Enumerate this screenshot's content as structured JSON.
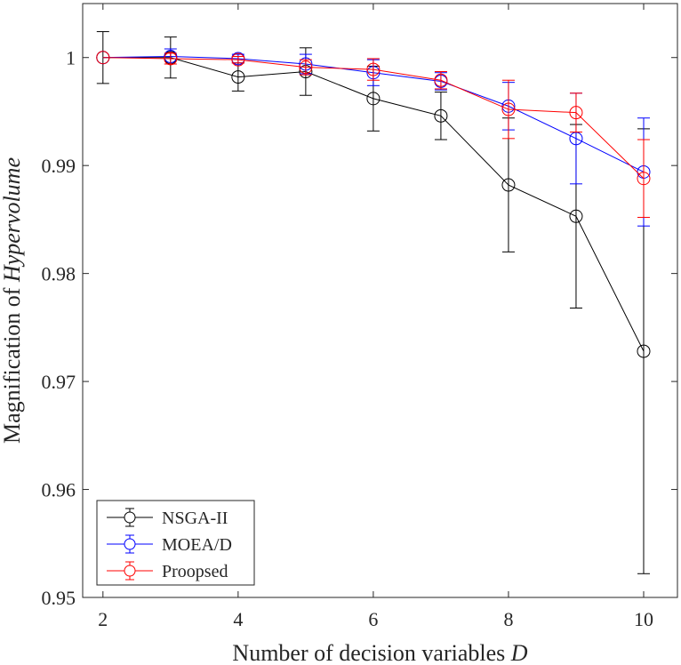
{
  "chart_data": {
    "type": "line",
    "title": "",
    "xlabel": "Number of decision variables ",
    "xlabel_italic": "D",
    "ylabel": "Magnification of ",
    "ylabel_italic": "Hypervolume",
    "xlim": [
      1.7,
      10.5
    ],
    "ylim": [
      0.95,
      1.005
    ],
    "xticks": [
      2,
      4,
      6,
      8,
      10
    ],
    "xtick_labels": [
      "2",
      "4",
      "6",
      "8",
      "10"
    ],
    "yticks": [
      0.95,
      0.96,
      0.97,
      0.98,
      0.99,
      1.0
    ],
    "ytick_labels": [
      "0.95",
      "0.96",
      "0.97",
      "0.98",
      "0.99",
      "1"
    ],
    "grid": false,
    "legend_position": "bottom-left",
    "markers": "open-circle",
    "error_bars": true,
    "series": [
      {
        "name": "NSGA-II",
        "color": "#000000",
        "x": [
          2,
          3,
          4,
          5,
          6,
          7,
          8,
          9,
          10
        ],
        "y": [
          1.0,
          1.0,
          0.9982,
          0.9987,
          0.9962,
          0.9946,
          0.9882,
          0.9853,
          0.9728
        ],
        "err": [
          0.0024,
          0.0019,
          0.0013,
          0.0022,
          0.003,
          0.0022,
          0.0062,
          0.0085,
          0.0206
        ]
      },
      {
        "name": "MOEA/D",
        "color": "#0000ff",
        "x": [
          2,
          3,
          4,
          5,
          6,
          7,
          8,
          9,
          10
        ],
        "y": [
          1.0,
          1.0001,
          0.9999,
          0.9994,
          0.9986,
          0.9978,
          0.9955,
          0.9925,
          0.9894
        ],
        "err": [
          0.0,
          0.0007,
          0.0004,
          0.0009,
          0.0012,
          0.0008,
          0.0022,
          0.0042,
          0.005
        ]
      },
      {
        "name": "Proopsed",
        "color": "#ff0000",
        "x": [
          2,
          3,
          4,
          5,
          6,
          7,
          8,
          9,
          10
        ],
        "y": [
          1.0,
          0.9999,
          0.9998,
          0.9991,
          0.9989,
          0.9979,
          0.9952,
          0.9949,
          0.9888
        ],
        "err": [
          0.0,
          0.0005,
          0.0003,
          0.0007,
          0.001,
          0.0008,
          0.0027,
          0.0018,
          0.0036
        ]
      }
    ]
  }
}
